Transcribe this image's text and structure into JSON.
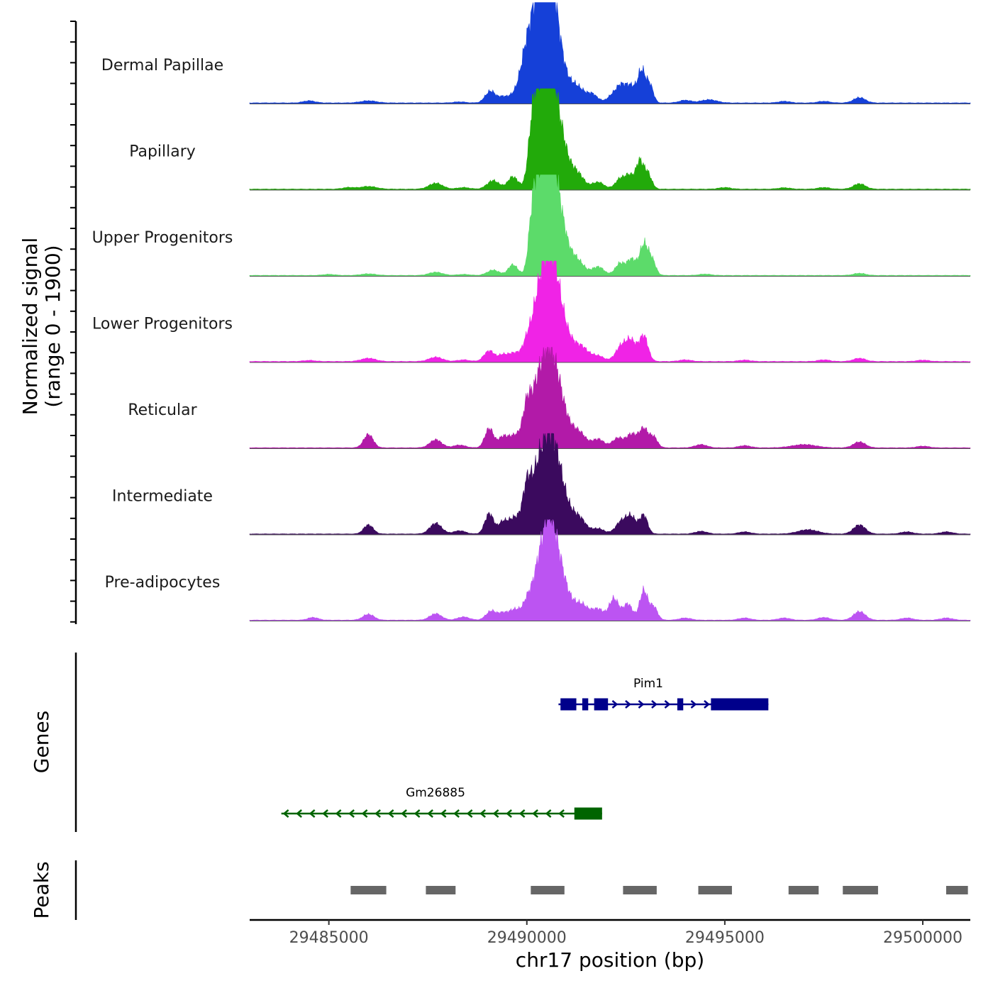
{
  "chart_data": [
    {
      "type": "area",
      "title": "",
      "ylabel_line1": "Normalized signal",
      "ylabel_line2": "(range 0 - 1900)",
      "ylim": [
        0,
        1900
      ],
      "x_range": [
        29483000,
        29501200
      ],
      "series": [
        {
          "name": "Dermal Papillae",
          "color": "#1540D8",
          "bg": 15,
          "peaks": [
            [
              29484500,
              40,
              150
            ],
            [
              29486000,
              40,
              200
            ],
            [
              29488300,
              20,
              150
            ],
            [
              29489080,
              220,
              130
            ],
            [
              29489400,
              100,
              120
            ],
            [
              29489700,
              110,
              150
            ],
            [
              29489950,
              290,
              120
            ],
            [
              29490130,
              850,
              220
            ],
            [
              29490300,
              1050,
              180
            ],
            [
              29490500,
              1350,
              160
            ],
            [
              29490680,
              1100,
              170
            ],
            [
              29490900,
              450,
              220
            ],
            [
              29491300,
              230,
              160
            ],
            [
              29491650,
              160,
              140
            ],
            [
              29492200,
              160,
              150
            ],
            [
              29492400,
              250,
              120
            ],
            [
              29492650,
              300,
              130
            ],
            [
              29492900,
              560,
              90
            ],
            [
              29493100,
              350,
              90
            ],
            [
              29494000,
              50,
              150
            ],
            [
              29494600,
              60,
              200
            ],
            [
              29496500,
              30,
              150
            ],
            [
              29497500,
              30,
              150
            ],
            [
              29498400,
              100,
              150
            ]
          ]
        },
        {
          "name": "Papillary",
          "color": "#22AA0A",
          "bg": 15,
          "peaks": [
            [
              29485500,
              30,
              150
            ],
            [
              29486000,
              50,
              200
            ],
            [
              29487700,
              110,
              170
            ],
            [
              29488400,
              30,
              150
            ],
            [
              29489150,
              160,
              150
            ],
            [
              29489650,
              230,
              130
            ],
            [
              29490150,
              1000,
              110
            ],
            [
              29490350,
              1200,
              160
            ],
            [
              29490520,
              1350,
              150
            ],
            [
              29490720,
              1100,
              180
            ],
            [
              29490950,
              420,
              200
            ],
            [
              29491300,
              230,
              160
            ],
            [
              29491800,
              130,
              150
            ],
            [
              29492350,
              180,
              120
            ],
            [
              29492600,
              250,
              120
            ],
            [
              29492850,
              480,
              90
            ],
            [
              29493050,
              300,
              100
            ],
            [
              29495000,
              30,
              150
            ],
            [
              29496500,
              25,
              150
            ],
            [
              29497500,
              30,
              150
            ],
            [
              29498400,
              100,
              150
            ]
          ]
        },
        {
          "name": "Upper Progenitors",
          "color": "#5CDB6A",
          "bg": 12,
          "peaks": [
            [
              29485000,
              20,
              150
            ],
            [
              29486000,
              30,
              180
            ],
            [
              29487700,
              60,
              170
            ],
            [
              29488400,
              20,
              150
            ],
            [
              29489150,
              100,
              150
            ],
            [
              29489650,
              200,
              120
            ],
            [
              29490150,
              950,
              100
            ],
            [
              29490350,
              1350,
              150
            ],
            [
              29490520,
              1700,
              130
            ],
            [
              29490720,
              1300,
              170
            ],
            [
              29490950,
              420,
              200
            ],
            [
              29491300,
              220,
              170
            ],
            [
              29491800,
              160,
              150
            ],
            [
              29492350,
              220,
              120
            ],
            [
              29492650,
              300,
              120
            ],
            [
              29492950,
              550,
              100
            ],
            [
              29493150,
              300,
              100
            ],
            [
              29494500,
              25,
              150
            ],
            [
              29498400,
              40,
              150
            ]
          ]
        },
        {
          "name": "Lower Progenitors",
          "color": "#F023E6",
          "bg": 15,
          "peaks": [
            [
              29484500,
              20,
              150
            ],
            [
              29486000,
              60,
              180
            ],
            [
              29487700,
              80,
              170
            ],
            [
              29488400,
              30,
              150
            ],
            [
              29489050,
              200,
              130
            ],
            [
              29489400,
              120,
              120
            ],
            [
              29489700,
              160,
              140
            ],
            [
              29490000,
              330,
              110
            ],
            [
              29490250,
              900,
              140
            ],
            [
              29490500,
              1400,
              150
            ],
            [
              29490700,
              1100,
              170
            ],
            [
              29490950,
              500,
              220
            ],
            [
              29491400,
              230,
              170
            ],
            [
              29491800,
              100,
              150
            ],
            [
              29492400,
              300,
              150
            ],
            [
              29492650,
              330,
              120
            ],
            [
              29492950,
              480,
              110
            ],
            [
              29494000,
              30,
              150
            ],
            [
              29495500,
              25,
              150
            ],
            [
              29497500,
              30,
              150
            ],
            [
              29498400,
              60,
              150
            ],
            [
              29500000,
              25,
              150
            ]
          ]
        },
        {
          "name": "Reticular",
          "color": "#B21AA8",
          "bg": 12,
          "peaks": [
            [
              29486000,
              250,
              120
            ],
            [
              29487700,
              150,
              150
            ],
            [
              29488300,
              50,
              150
            ],
            [
              29489050,
              360,
              110
            ],
            [
              29489400,
              200,
              120
            ],
            [
              29489700,
              230,
              140
            ],
            [
              29490000,
              700,
              110
            ],
            [
              29490250,
              900,
              150
            ],
            [
              29490500,
              1200,
              160
            ],
            [
              29490720,
              900,
              170
            ],
            [
              29490950,
              450,
              220
            ],
            [
              29491350,
              220,
              160
            ],
            [
              29491800,
              160,
              150
            ],
            [
              29492300,
              180,
              140
            ],
            [
              29492650,
              250,
              130
            ],
            [
              29492950,
              350,
              110
            ],
            [
              29493200,
              200,
              100
            ],
            [
              29494400,
              60,
              150
            ],
            [
              29495500,
              40,
              150
            ],
            [
              29497000,
              60,
              300
            ],
            [
              29498400,
              110,
              150
            ],
            [
              29500000,
              30,
              150
            ]
          ]
        },
        {
          "name": "Intermediate",
          "color": "#3B0A5E",
          "bg": 12,
          "peaks": [
            [
              29486000,
              170,
              120
            ],
            [
              29487700,
              200,
              150
            ],
            [
              29488300,
              60,
              150
            ],
            [
              29489050,
              380,
              110
            ],
            [
              29489400,
              220,
              120
            ],
            [
              29489700,
              300,
              140
            ],
            [
              29490000,
              800,
              110
            ],
            [
              29490250,
              900,
              150
            ],
            [
              29490500,
              1200,
              160
            ],
            [
              29490720,
              950,
              170
            ],
            [
              29490950,
              500,
              220
            ],
            [
              29491350,
              230,
              160
            ],
            [
              29491800,
              100,
              150
            ],
            [
              29492400,
              240,
              150
            ],
            [
              29492650,
              280,
              120
            ],
            [
              29492950,
              350,
              100
            ],
            [
              29494400,
              50,
              150
            ],
            [
              29495500,
              40,
              150
            ],
            [
              29497100,
              80,
              250
            ],
            [
              29498400,
              170,
              150
            ],
            [
              29499600,
              40,
              150
            ],
            [
              29500600,
              40,
              150
            ]
          ]
        },
        {
          "name": "Pre-adipocytes",
          "color": "#BC54F2",
          "bg": 12,
          "peaks": [
            [
              29484600,
              50,
              130
            ],
            [
              29486000,
              110,
              140
            ],
            [
              29487700,
              120,
              150
            ],
            [
              29488400,
              60,
              150
            ],
            [
              29489100,
              170,
              130
            ],
            [
              29489400,
              120,
              120
            ],
            [
              29489700,
              200,
              140
            ],
            [
              29490000,
              300,
              110
            ],
            [
              29490250,
              700,
              140
            ],
            [
              29490500,
              1300,
              150
            ],
            [
              29490720,
              950,
              170
            ],
            [
              29490950,
              450,
              220
            ],
            [
              29491400,
              250,
              170
            ],
            [
              29491800,
              200,
              150
            ],
            [
              29492200,
              400,
              120
            ],
            [
              29492550,
              300,
              120
            ],
            [
              29492950,
              550,
              100
            ],
            [
              29493200,
              250,
              100
            ],
            [
              29494000,
              40,
              150
            ],
            [
              29495500,
              40,
              150
            ],
            [
              29496500,
              40,
              150
            ],
            [
              29497500,
              50,
              150
            ],
            [
              29498400,
              160,
              150
            ],
            [
              29499600,
              40,
              150
            ],
            [
              29500600,
              40,
              150
            ]
          ]
        }
      ]
    },
    {
      "type": "gene_track",
      "ylabel": "Genes",
      "genes": [
        {
          "name": "Pim1",
          "strand": "+",
          "color": "#00008B",
          "start": 29490800,
          "end": 29496100,
          "exons": [
            [
              29490850,
              29491250
            ],
            [
              29491400,
              29491550
            ],
            [
              29491700,
              29492050
            ],
            [
              29493800,
              29493950
            ],
            [
              29494650,
              29496100
            ]
          ]
        },
        {
          "name": "Gm26885",
          "strand": "-",
          "color": "#006400",
          "start": 29483800,
          "end": 29491900,
          "exons": [
            [
              29491200,
              29491900
            ]
          ]
        }
      ]
    },
    {
      "type": "peak_track",
      "ylabel": "Peaks",
      "color": "#666666",
      "peaks": [
        [
          29485550,
          29486450
        ],
        [
          29487450,
          29488200
        ],
        [
          29490100,
          29490950
        ],
        [
          29492430,
          29493280
        ],
        [
          29494330,
          29495180
        ],
        [
          29496610,
          29497370
        ],
        [
          29497980,
          29498870
        ],
        [
          29500590,
          29501140
        ]
      ]
    },
    {
      "type": "x_axis",
      "xlabel": "chr17 position (bp)",
      "ticks": [
        29485000,
        29490000,
        29495000,
        29500000
      ],
      "tick_labels": [
        "29485000",
        "29490000",
        "29495000",
        "29500000"
      ]
    }
  ]
}
